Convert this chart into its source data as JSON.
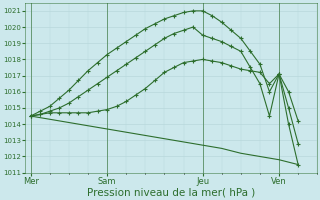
{
  "bg_color": "#cce8ec",
  "grid_color": "#b8d8dc",
  "line_color": "#2d6e2d",
  "xlabel": "Pression niveau de la mer( hPa )",
  "xlabel_fontsize": 7.5,
  "ylim": [
    1011,
    1021.5
  ],
  "yticks": [
    1011,
    1012,
    1013,
    1014,
    1015,
    1016,
    1017,
    1018,
    1019,
    1020,
    1021
  ],
  "xtick_labels": [
    "Mer",
    "Sam",
    "Jeu",
    "Ven"
  ],
  "xtick_positions": [
    0,
    4,
    9,
    13
  ],
  "vline_positions": [
    0,
    4,
    9,
    13
  ],
  "xlim": [
    -0.3,
    15.0
  ],
  "line1_x": [
    0,
    0.5,
    1,
    1.5,
    2,
    2.5,
    3,
    3.5,
    4,
    4.5,
    5,
    5.5,
    6,
    6.5,
    7,
    7.5,
    8,
    8.5,
    9,
    9.5,
    10,
    10.5,
    11,
    11.5,
    12,
    12.5,
    13,
    13.5,
    14
  ],
  "line1_y": [
    1014.5,
    1014.6,
    1014.7,
    1014.7,
    1014.7,
    1014.7,
    1014.7,
    1014.8,
    1014.9,
    1015.1,
    1015.4,
    1015.8,
    1016.2,
    1016.7,
    1017.2,
    1017.5,
    1017.8,
    1017.9,
    1018.0,
    1017.9,
    1017.8,
    1017.6,
    1017.4,
    1017.3,
    1017.2,
    1016.5,
    1017.1,
    1016.0,
    1014.2
  ],
  "line2_x": [
    0,
    0.5,
    1,
    1.5,
    2,
    2.5,
    3,
    3.5,
    4,
    4.5,
    5,
    5.5,
    6,
    6.5,
    7,
    7.5,
    8,
    8.5,
    9,
    9.5,
    10,
    10.5,
    11,
    11.5,
    12,
    12.5,
    13,
    13.5,
    14
  ],
  "line2_y": [
    1014.5,
    1014.6,
    1014.8,
    1015.0,
    1015.3,
    1015.7,
    1016.1,
    1016.5,
    1016.9,
    1017.3,
    1017.7,
    1018.1,
    1018.5,
    1018.9,
    1019.3,
    1019.6,
    1019.8,
    1020.0,
    1019.5,
    1019.3,
    1019.1,
    1018.8,
    1018.5,
    1017.5,
    1016.5,
    1014.5,
    1017.1,
    1015.0,
    1012.8
  ],
  "line3_x": [
    0,
    0.5,
    1,
    1.5,
    2,
    2.5,
    3,
    3.5,
    4,
    4.5,
    5,
    5.5,
    6,
    6.5,
    7,
    7.5,
    8,
    8.5,
    9,
    9.5,
    10,
    10.5,
    11,
    11.5,
    12,
    12.5,
    13,
    13.5,
    14
  ],
  "line3_y": [
    1014.5,
    1014.8,
    1015.1,
    1015.6,
    1016.1,
    1016.7,
    1017.3,
    1017.8,
    1018.3,
    1018.7,
    1019.1,
    1019.5,
    1019.9,
    1020.2,
    1020.5,
    1020.7,
    1020.9,
    1021.0,
    1021.0,
    1020.7,
    1020.3,
    1019.8,
    1019.3,
    1018.5,
    1017.7,
    1016.0,
    1017.1,
    1014.0,
    1011.5
  ],
  "line4_x": [
    0,
    1,
    2,
    3,
    4,
    5,
    6,
    7,
    8,
    9,
    10,
    11,
    12,
    13,
    14
  ],
  "line4_y": [
    1014.5,
    1014.3,
    1014.1,
    1013.9,
    1013.7,
    1013.5,
    1013.3,
    1013.1,
    1012.9,
    1012.7,
    1012.5,
    1012.2,
    1012.0,
    1011.8,
    1011.5
  ],
  "line1_has_marker": true,
  "line2_has_marker": true,
  "line3_has_marker": true,
  "line4_has_marker": false
}
